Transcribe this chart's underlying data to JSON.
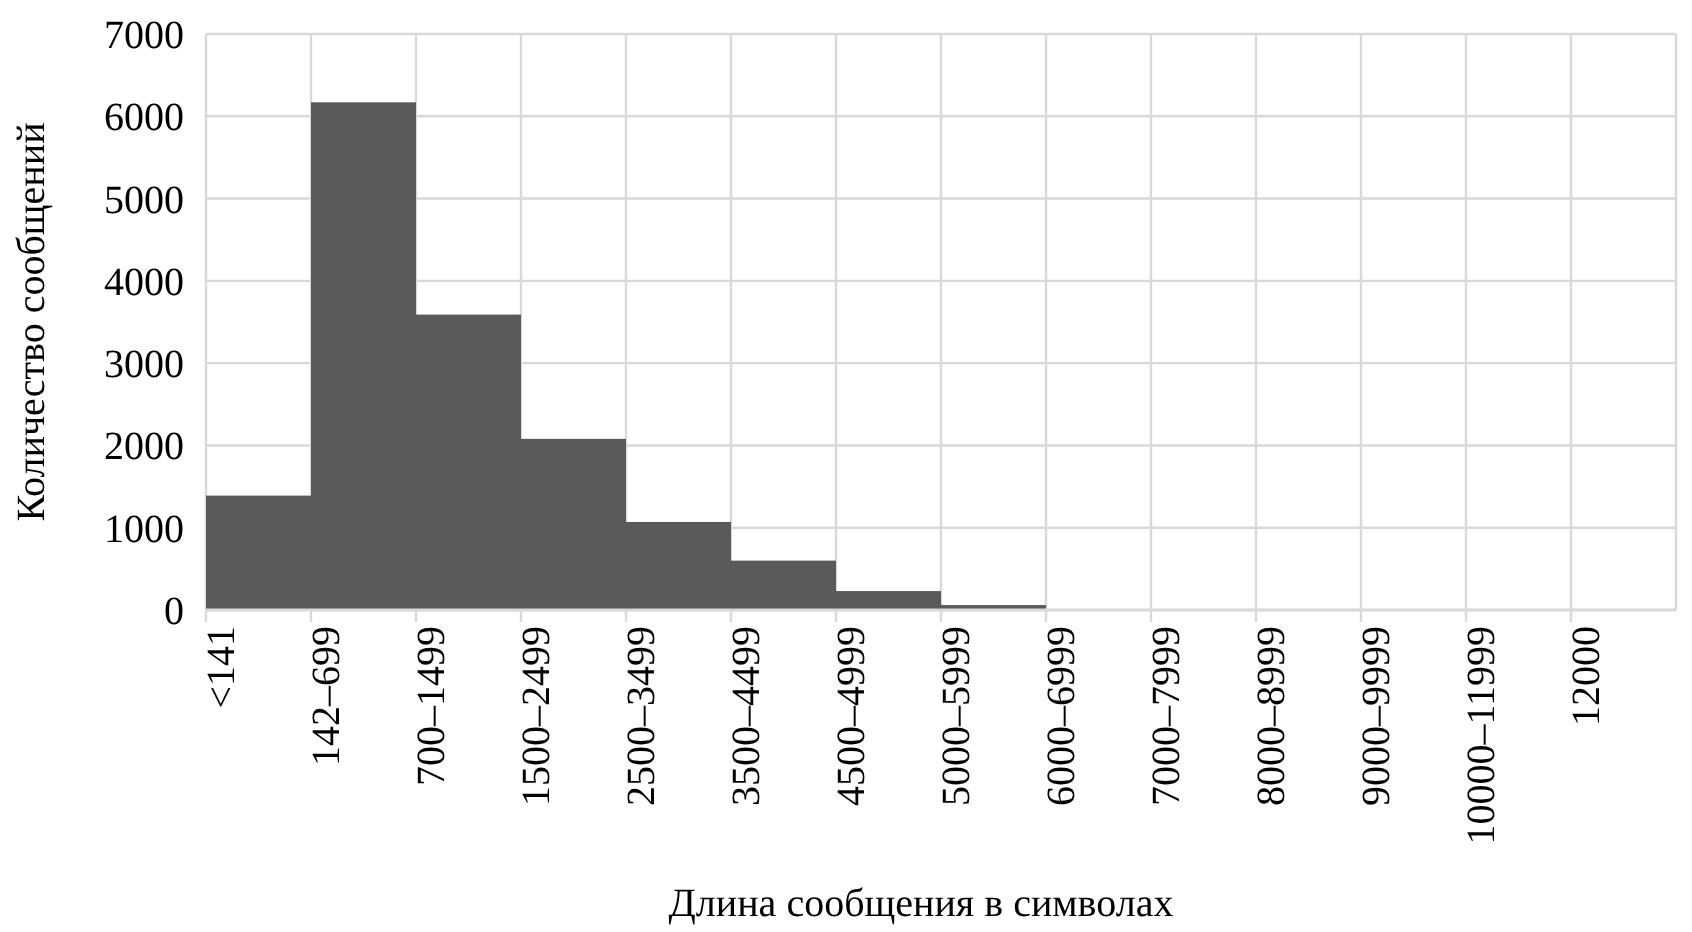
{
  "chart_data": {
    "type": "bar",
    "xlabel": "Длина сообщения в символах",
    "ylabel": "Количество сообщений",
    "categories": [
      "<141",
      "142–699",
      "700–1499",
      "1500–2499",
      "2500–3499",
      "3500–4499",
      "4500–4999",
      "5000–5999",
      "6000–6999",
      "7000–7999",
      "8000–8999",
      "9000–9999",
      "10000–11999",
      "12000"
    ],
    "values": [
      1390,
      6170,
      3590,
      2080,
      1070,
      600,
      230,
      60,
      null,
      null,
      null,
      null,
      null,
      null
    ],
    "color": "#5a5a5c",
    "ylim": [
      0,
      7000
    ],
    "yticks": [
      0,
      1000,
      2000,
      3000,
      4000,
      5000,
      6000,
      7000
    ],
    "grid": true
  }
}
